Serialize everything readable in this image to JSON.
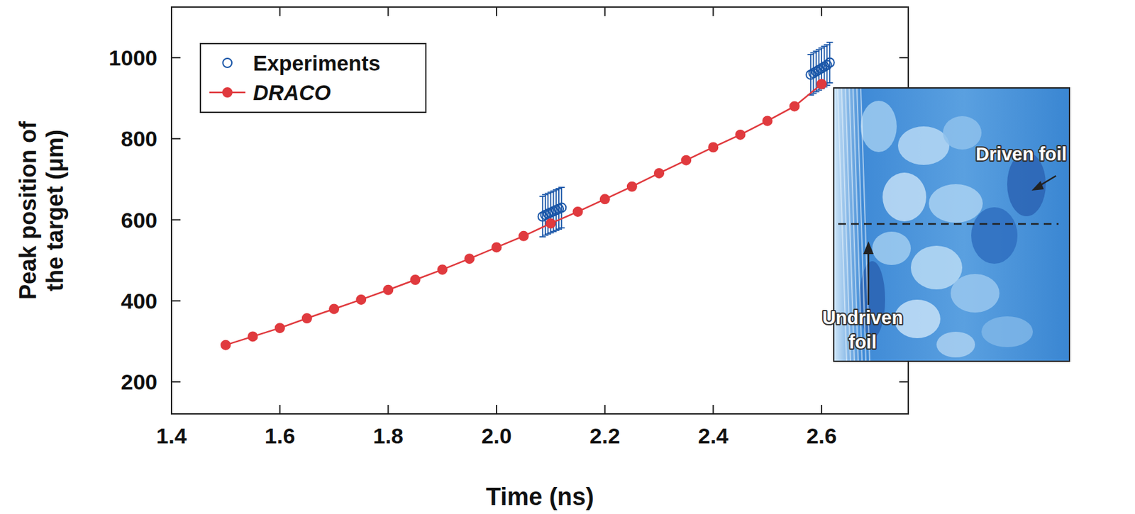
{
  "chart_data": {
    "type": "line",
    "x_label": "Time (ns)",
    "y_label": "Peak position of the target (μm)",
    "xlim": [
      1.4,
      2.76
    ],
    "ylim": [
      121,
      1125
    ],
    "xticks": [
      1.4,
      1.6,
      1.8,
      {
        "value": 2,
        "label": "2.0"
      },
      2.2,
      2.4,
      2.6
    ],
    "yticks": [
      200,
      400,
      600,
      800,
      1000
    ],
    "grid": false,
    "legend": "upper left",
    "series": [
      {
        "name": "Experiments",
        "type": "scatter",
        "marker": "circle",
        "color": "#1a56a8",
        "x": [
          2.085,
          2.09,
          2.095,
          2.1,
          2.105,
          2.11,
          2.115,
          2.12,
          2.58,
          2.585,
          2.59,
          2.595,
          2.6,
          2.605,
          2.61,
          2.615
        ],
        "values": [
          608,
          612,
          615,
          618,
          621,
          624,
          627,
          630,
          958,
          962,
          966,
          970,
          974,
          978,
          982,
          988
        ],
        "errors": [
          50,
          50,
          50,
          50,
          50,
          50,
          50,
          50,
          50,
          50,
          50,
          50,
          50,
          50,
          50,
          50
        ]
      },
      {
        "name": "DRACO",
        "type": "line",
        "marker": "circle",
        "color": "#e03a3e",
        "x": [
          1.5,
          1.55,
          1.6,
          1.65,
          1.7,
          1.75,
          1.8,
          1.85,
          1.9,
          1.95,
          2.0,
          2.05,
          2.1,
          2.15,
          2.2,
          2.25,
          2.3,
          2.35,
          2.4,
          2.45,
          2.5,
          2.55,
          2.6
        ],
        "values": [
          291,
          312,
          333,
          357,
          380,
          403,
          427,
          452,
          477,
          504,
          532,
          560,
          591,
          620,
          651,
          682,
          715,
          747,
          779,
          810,
          844,
          880,
          935
        ]
      }
    ],
    "annotations": [
      "Driven foil",
      "Undriven foil"
    ]
  }
}
